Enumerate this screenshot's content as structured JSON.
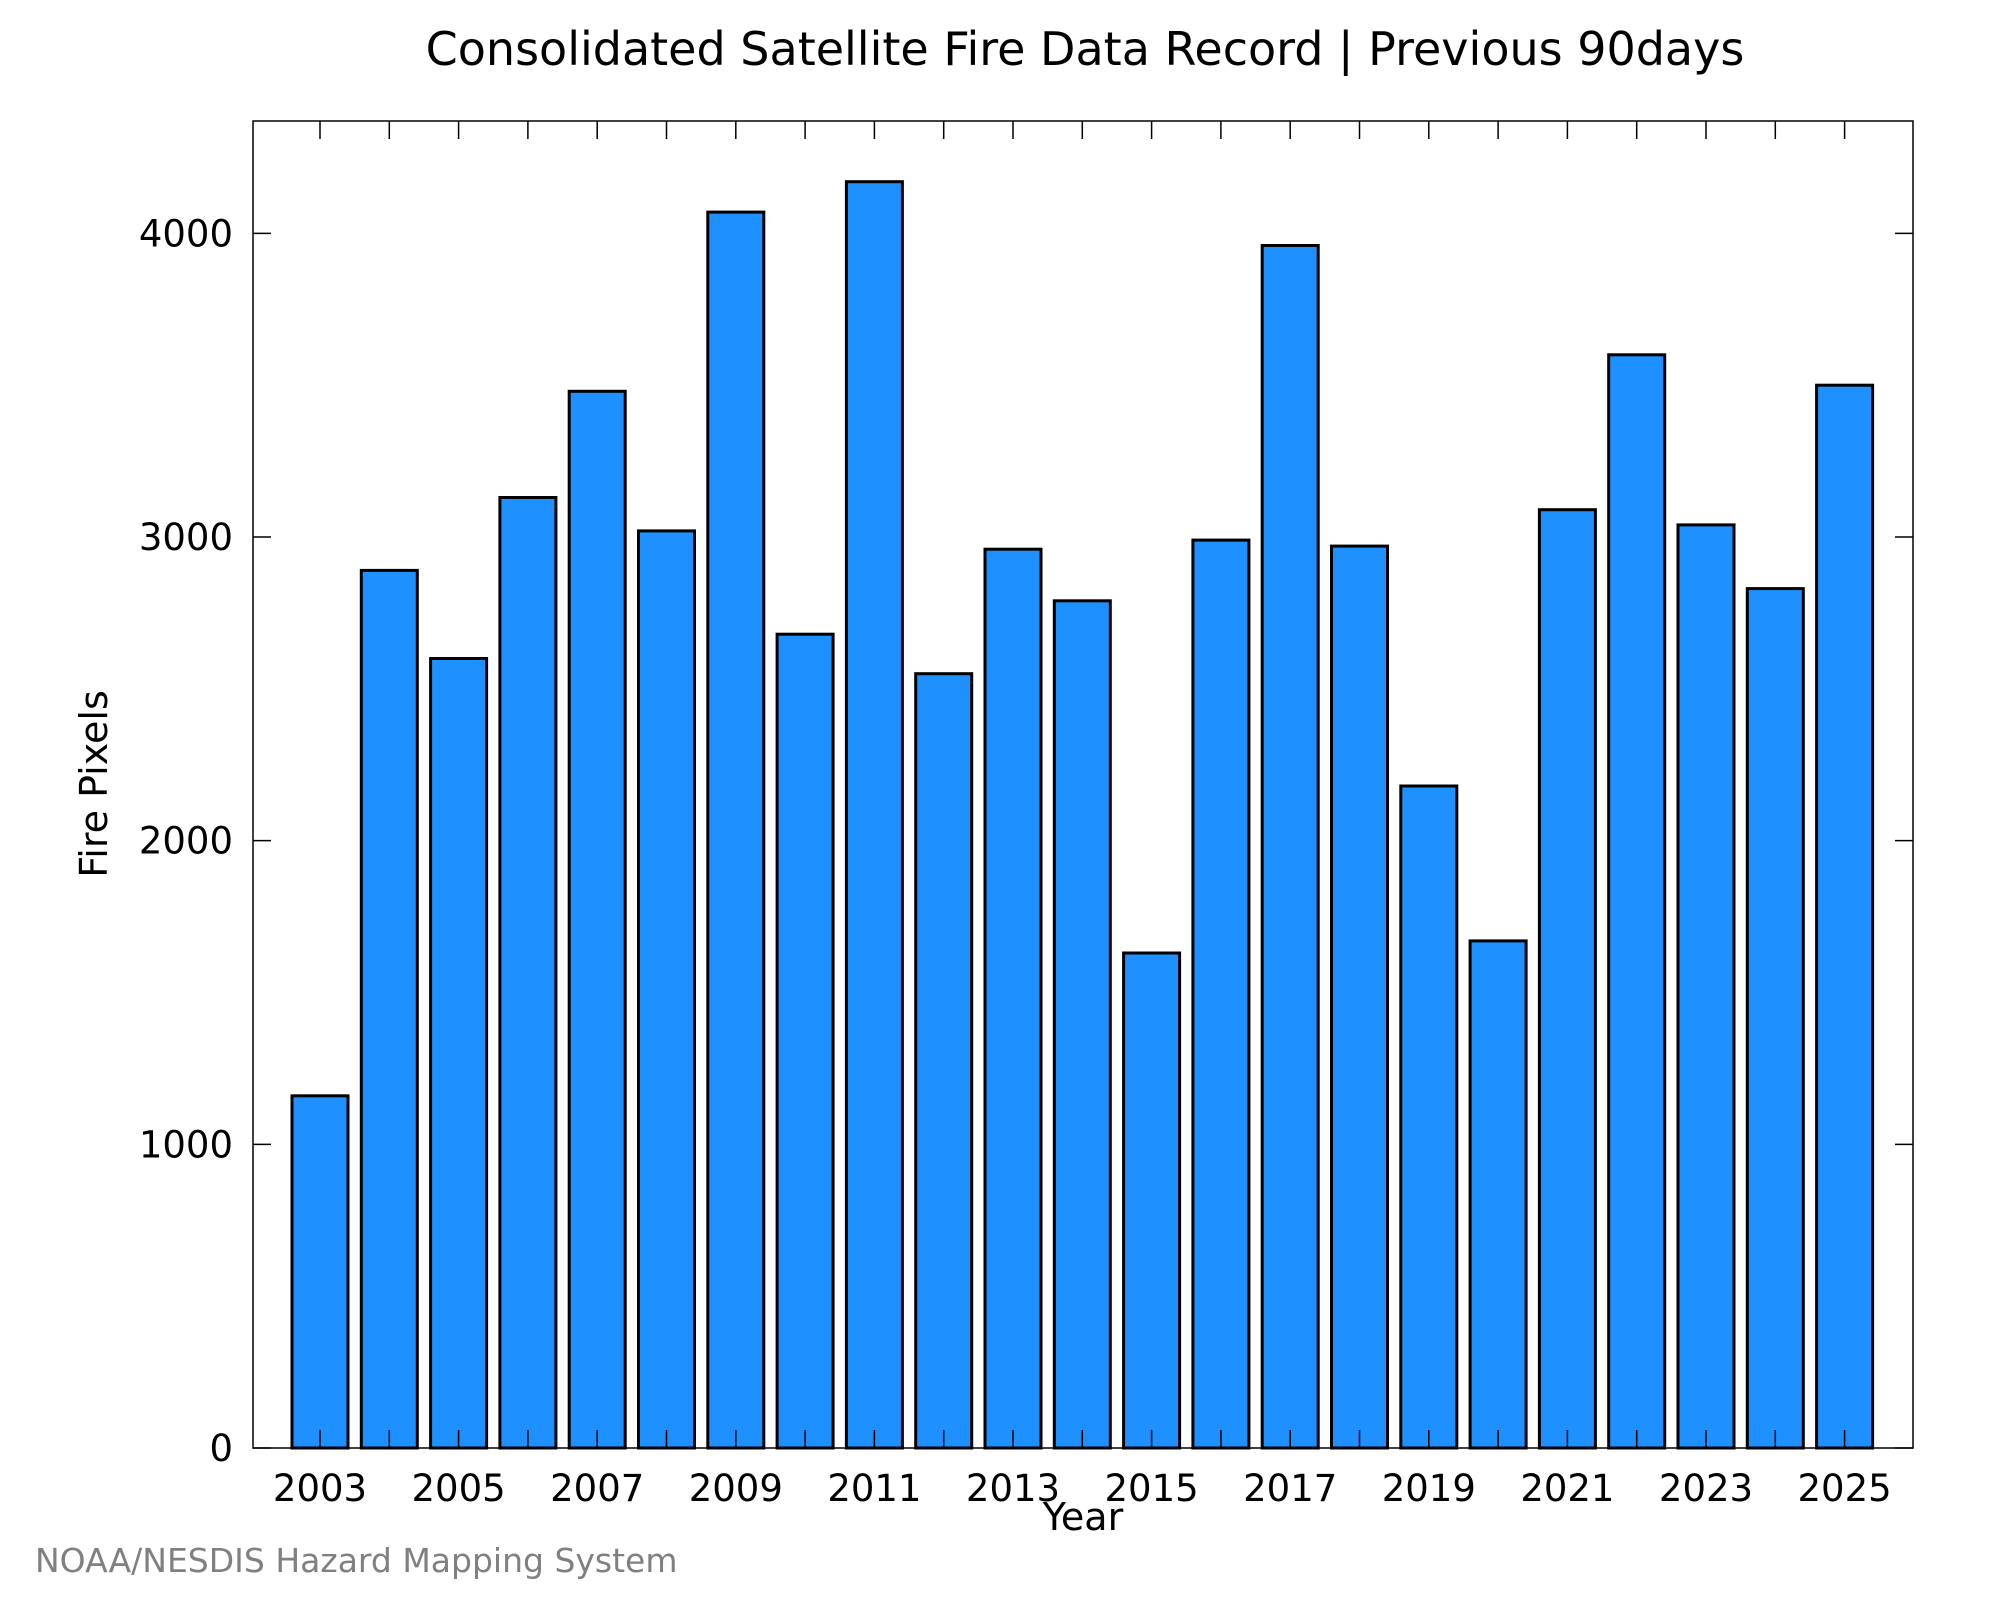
{
  "chart_data": {
    "type": "bar",
    "title": "Consolidated Satellite Fire Data Record | Previous 90days",
    "xlabel": "Year",
    "ylabel": "Fire Pixels",
    "categories": [
      "2003",
      "2004",
      "2005",
      "2006",
      "2007",
      "2008",
      "2009",
      "2010",
      "2011",
      "2012",
      "2013",
      "2014",
      "2015",
      "2016",
      "2017",
      "2018",
      "2019",
      "2020",
      "2021",
      "2022",
      "2023",
      "2024",
      "2025"
    ],
    "values": [
      1160,
      2890,
      2600,
      3130,
      3480,
      3020,
      4070,
      2680,
      4170,
      2550,
      2960,
      2790,
      1630,
      2990,
      3960,
      2970,
      2180,
      1670,
      3090,
      3600,
      3040,
      2830,
      3500
    ],
    "xticks": [
      "2003",
      "2005",
      "2007",
      "2009",
      "2011",
      "2013",
      "2015",
      "2017",
      "2019",
      "2021",
      "2023",
      "2025"
    ],
    "yticks": [
      0,
      1000,
      2000,
      3000,
      4000
    ],
    "ylim": [
      0,
      4370
    ],
    "grid": false,
    "bar_color": "#1e90ff",
    "bar_edge_color": "#000000"
  },
  "credit": "NOAA/NESDIS Hazard Mapping System"
}
